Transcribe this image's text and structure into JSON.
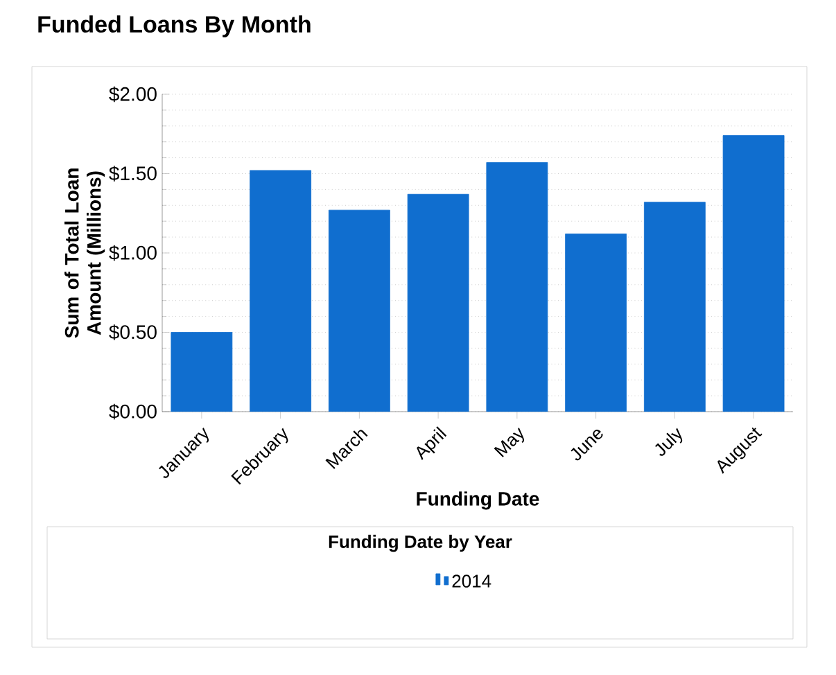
{
  "chart_data": {
    "type": "bar",
    "title": "Funded Loans By Month",
    "xlabel": "Funding Date",
    "ylabel": "Sum of Total Loan Amount (Millions)",
    "legend_title": "Funding Date by Year",
    "categories": [
      "January",
      "February",
      "March",
      "April",
      "May",
      "June",
      "July",
      "August"
    ],
    "series": [
      {
        "name": "2014",
        "color": "#106ecf",
        "values": [
          0.5,
          1.52,
          1.27,
          1.37,
          1.57,
          1.12,
          1.32,
          1.74
        ]
      }
    ],
    "ylim": [
      0,
      2
    ],
    "yticks": [
      {
        "value": 0,
        "label": "$0.00"
      },
      {
        "value": 0.5,
        "label": "$0.50"
      },
      {
        "value": 1,
        "label": "$1.00"
      },
      {
        "value": 1.5,
        "label": "$1.50"
      },
      {
        "value": 2,
        "label": "$2.00"
      }
    ],
    "grid": "y",
    "legend": "bottom"
  }
}
